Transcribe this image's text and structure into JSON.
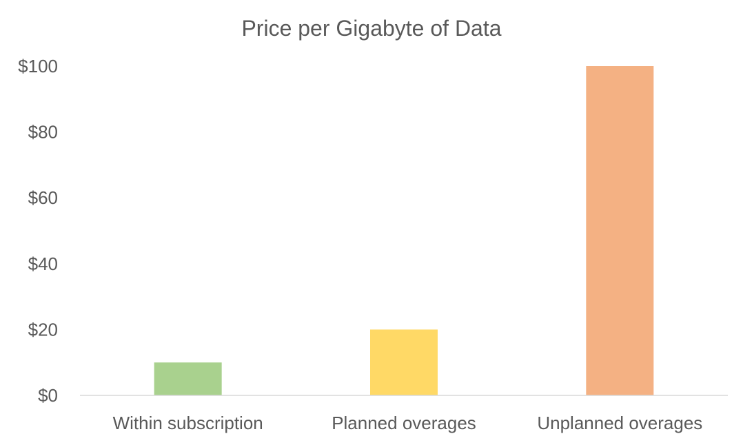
{
  "chart_data": {
    "type": "bar",
    "title": "Price per Gigabyte of Data",
    "categories": [
      "Within subscription",
      "Planned overages",
      "Unplanned overages"
    ],
    "values": [
      10,
      20,
      100
    ],
    "colors": [
      "#a9d18e",
      "#ffd966",
      "#f4b183"
    ],
    "ylim": [
      0,
      100
    ],
    "yticks": [
      0,
      20,
      40,
      60,
      80,
      100
    ],
    "ytick_labels": [
      "$0",
      "$20",
      "$40",
      "$60",
      "$80",
      "$100"
    ],
    "xlabel": "",
    "ylabel": "",
    "grid": false,
    "legend": "none"
  }
}
